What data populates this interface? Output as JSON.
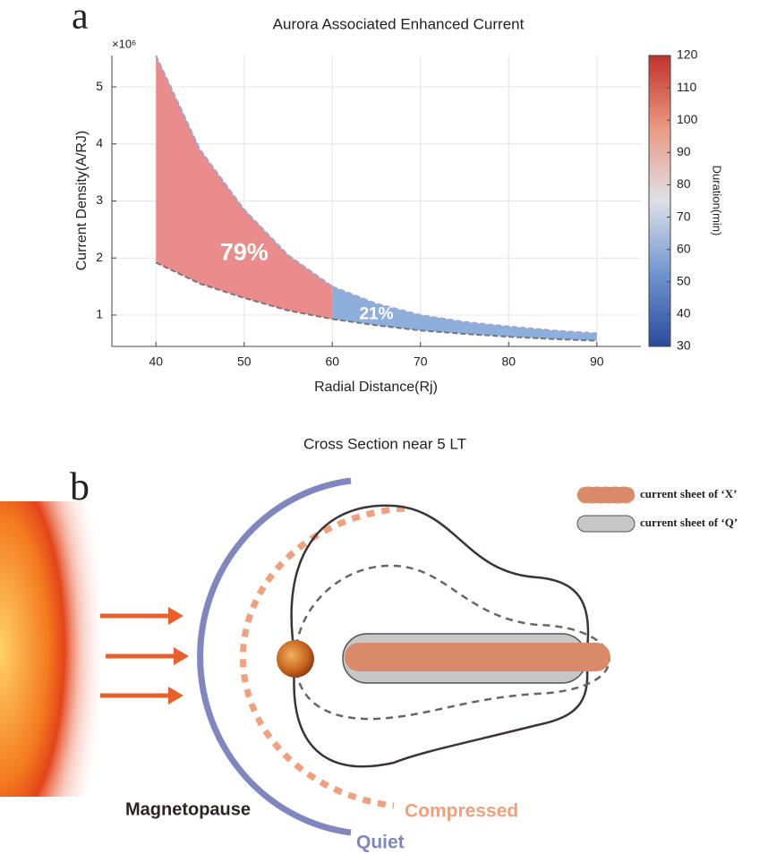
{
  "panel_labels": [
    "a",
    "b"
  ],
  "chart_data": {
    "type": "band",
    "title": "Aurora Associated Enhanced Current",
    "xlabel": "Radial Distance(Rj)",
    "ylabel": "Current Density(A/RJ)",
    "y_multiplier": "×10⁶",
    "xlim": [
      35,
      95
    ],
    "xticks": [
      40,
      50,
      60,
      70,
      80,
      90
    ],
    "ylim": [
      0.45,
      5.55
    ],
    "yticks": [
      1,
      2,
      3,
      4,
      5
    ],
    "grid": true,
    "bands": [
      {
        "x": [
          40,
          45,
          50,
          55,
          60
        ],
        "upper": [
          5.55,
          3.9,
          2.85,
          2.05,
          1.5
        ],
        "lower": [
          1.92,
          1.55,
          1.3,
          1.08,
          0.93
        ],
        "color": "#e98c8b",
        "label": "79%"
      },
      {
        "x": [
          60,
          65,
          70,
          75,
          80,
          85,
          90
        ],
        "upper": [
          1.5,
          1.2,
          1.0,
          0.88,
          0.8,
          0.73,
          0.68
        ],
        "lower": [
          0.93,
          0.82,
          0.73,
          0.67,
          0.62,
          0.58,
          0.55
        ],
        "color": "#8eaedb",
        "label": "21%"
      }
    ],
    "colorbar": {
      "label": "Duration(min)",
      "ylim": [
        30,
        120
      ],
      "yticks": [
        30,
        40,
        50,
        60,
        70,
        80,
        90,
        100,
        110,
        120
      ],
      "colors": [
        "#2b4a9e",
        "#6f95cf",
        "#dde1e8",
        "#ec9a82",
        "#c0312b"
      ]
    }
  },
  "diagram": {
    "title": "Cross Section near 5 LT",
    "legend": [
      "current sheet of ‘X’",
      "current sheet of ‘Q’"
    ],
    "labels": {
      "magnetopause": "Magnetopause",
      "compressed": "Compressed",
      "quiet": "Quiet"
    }
  }
}
